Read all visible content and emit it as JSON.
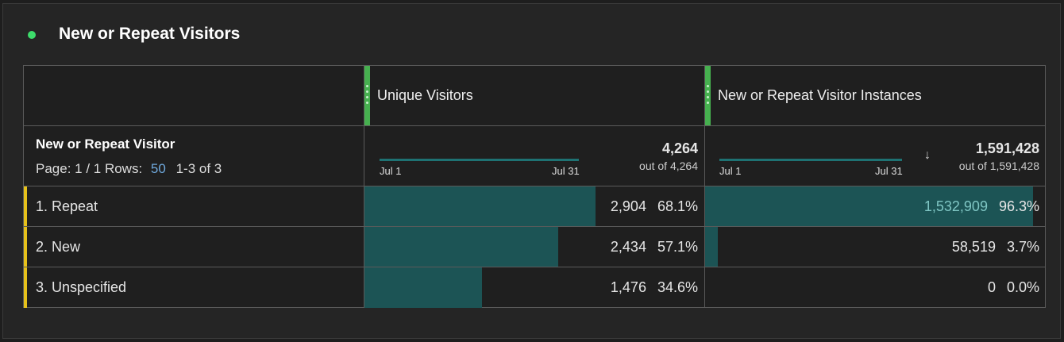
{
  "title": "New or Repeat Visitors",
  "columns": [
    {
      "label": "Unique Visitors",
      "total": "4,264",
      "out_of": "out of 4,264",
      "spark_start": "Jul 1",
      "spark_end": "Jul 31"
    },
    {
      "label": "New or Repeat Visitor Instances",
      "total": "1,591,428",
      "out_of": "out of 1,591,428",
      "spark_start": "Jul 1",
      "spark_end": "Jul 31",
      "sort_icon": "arrow-down-icon"
    }
  ],
  "dimension": {
    "label": "New or Repeat Visitor",
    "page_label": "Page: 1 / 1 Rows:",
    "rows_value": "50",
    "range": "1-3 of 3"
  },
  "rows": [
    {
      "label": "1.  Repeat",
      "c1": "2,904",
      "c1p": "68.1%",
      "c1f": 0.681,
      "c2": "1,532,909",
      "c2p": "96.3%",
      "c2f": 0.963
    },
    {
      "label": "2.  New",
      "c1": "2,434",
      "c1p": "57.1%",
      "c1f": 0.571,
      "c2": "58,519",
      "c2p": "3.7%",
      "c2f": 0.037
    },
    {
      "label": "3.  Unspecified",
      "c1": "1,476",
      "c1p": "34.6%",
      "c1f": 0.346,
      "c2": "0",
      "c2p": "0.0%",
      "c2f": 0
    }
  ],
  "colors": {
    "accent": "#3ddc6b",
    "bar": "#1c5455",
    "link": "#6fa8dc",
    "row_marker": "#e6c11a"
  }
}
